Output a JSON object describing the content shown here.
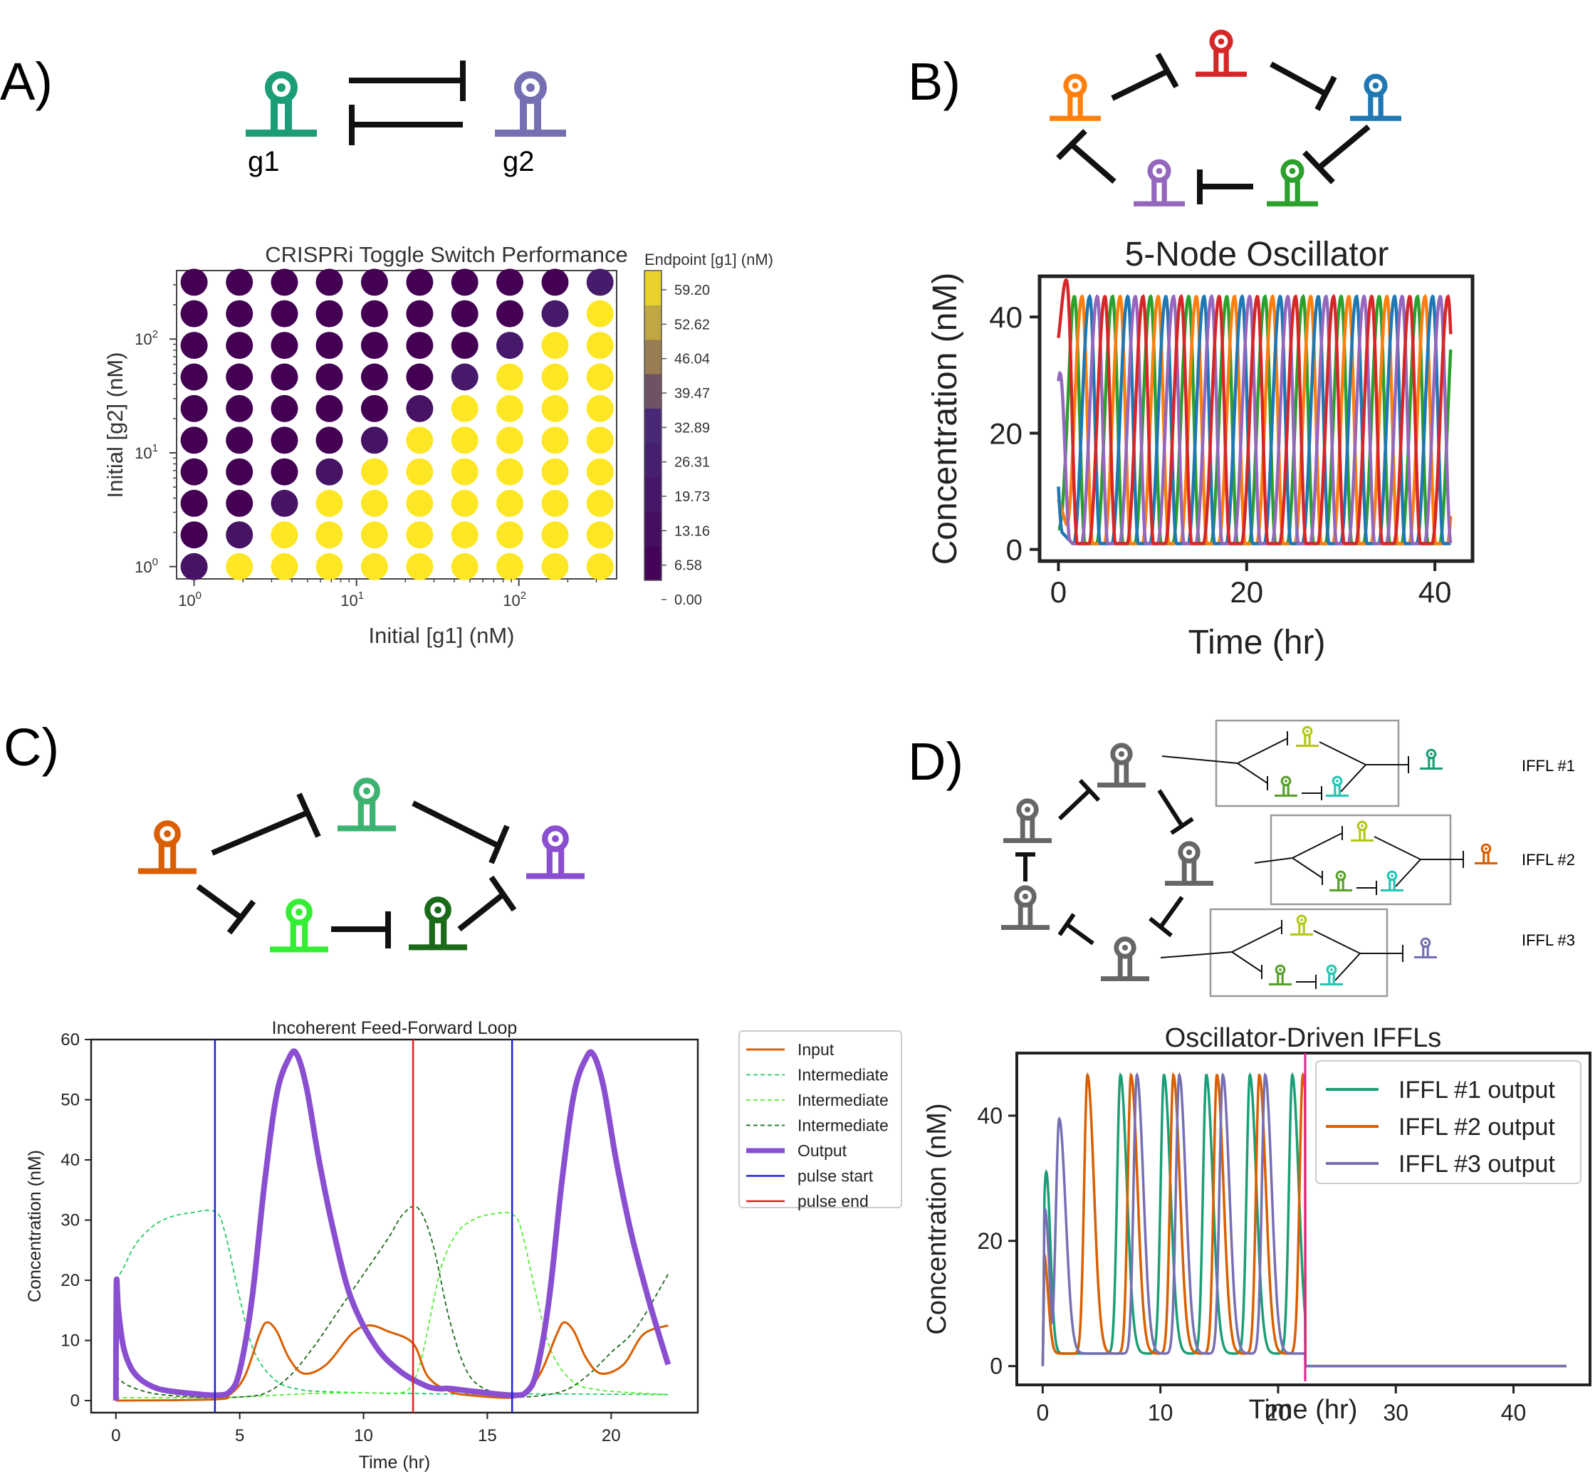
{
  "panels": {
    "a": {
      "letter": "A)",
      "gene_labels": [
        "g1",
        "g2"
      ],
      "colors": {
        "g1": "#1b9e77",
        "g2": "#7570b3"
      }
    },
    "b": {
      "letter": "B)",
      "node_colors": [
        "#ff7f0e",
        "#d62728",
        "#1f77b4",
        "#2ca02c",
        "#9467bd"
      ]
    },
    "c": {
      "letter": "C)",
      "node_colors": {
        "input": "#d95f02",
        "top": "#3cb371",
        "output": "#8a4fd0",
        "bottom_left": "#33ee33",
        "bottom_right": "#1a6a1a"
      }
    },
    "d": {
      "letter": "D)",
      "iffl_labels": [
        "IFFL #1",
        "IFFL #2",
        "IFFL #3"
      ],
      "node_color": "#666666",
      "output_colors": [
        "#1b9e77",
        "#d95f02",
        "#7570b3"
      ]
    }
  },
  "chart_data": [
    {
      "id": "A",
      "type": "scatter",
      "title": "CRISPRi Toggle Switch Performance",
      "xlabel": "Initial [g1] (nM)",
      "ylabel": "Initial [g2] (nM)",
      "x_scale": "log",
      "y_scale": "log",
      "x_ticks": [
        {
          "base": "10",
          "exp": "0",
          "v": 1
        },
        {
          "base": "10",
          "exp": "1",
          "v": 10
        },
        {
          "base": "10",
          "exp": "2",
          "v": 100
        }
      ],
      "y_ticks": [
        {
          "base": "10",
          "exp": "0",
          "v": 1
        },
        {
          "base": "10",
          "exp": "1",
          "v": 10
        },
        {
          "base": "10",
          "exp": "2",
          "v": 100
        }
      ],
      "grid_values": [
        1,
        1.9,
        3.6,
        6.8,
        12.9,
        24.5,
        46.4,
        88,
        167,
        316
      ],
      "colorbar_title": "Endpoint [g1] (nM)",
      "colorbar_ticks": [
        "59.20",
        "52.62",
        "46.04",
        "39.47",
        "32.89",
        "26.31",
        "19.73",
        "13.16",
        "6.58",
        "0.00"
      ],
      "colorbar_range": [
        0,
        59.2
      ],
      "colors": {
        "low": "#440154",
        "high": "#fde725"
      },
      "partial": [
        [
          0,
          0,
          14
        ],
        [
          1,
          1,
          14
        ],
        [
          2,
          2,
          14
        ],
        [
          3,
          3,
          14
        ],
        [
          4,
          4,
          14
        ],
        [
          5,
          5,
          14
        ],
        [
          6,
          6,
          18
        ],
        [
          7,
          7,
          18
        ],
        [
          8,
          8,
          18
        ],
        [
          9,
          9,
          20
        ]
      ],
      "note": "Endpoint [g1] is low (~0) when Initial [g1] index < Initial [g2] index and high (~59.2) when greater; near-diagonal points intermediate."
    },
    {
      "id": "B",
      "type": "line",
      "title": "5-Node Oscillator",
      "xlabel": "Time (hr)",
      "ylabel": "Concentration (nM)",
      "xlim": [
        -2,
        44
      ],
      "ylim": [
        -2,
        47
      ],
      "x_ticks": [
        0,
        20,
        40
      ],
      "y_ticks": [
        0,
        20,
        40
      ],
      "period": 4.05,
      "amplitude": [
        1,
        43.5
      ],
      "series": [
        {
          "color": "#2ca02c",
          "phase": 0.0
        },
        {
          "color": "#ff7f0e",
          "phase": 0.81
        },
        {
          "color": "#1f77b4",
          "phase": 1.62
        },
        {
          "color": "#9467bd",
          "phase": 2.43
        },
        {
          "color": "#d62728",
          "phase": 3.24
        }
      ],
      "t_end": 41.7
    },
    {
      "id": "C",
      "type": "line",
      "title": "Incoherent Feed-Forward Loop",
      "xlabel": "Time (hr)",
      "ylabel": "Concentration (nM)",
      "xlim": [
        -1,
        23.5
      ],
      "ylim": [
        -2,
        60
      ],
      "x_ticks": [
        0,
        5,
        10,
        15,
        20
      ],
      "y_ticks": [
        0,
        10,
        20,
        30,
        40,
        50,
        60
      ],
      "legend": [
        "Input",
        "Intermediate",
        "Intermediate",
        "Intermediate",
        "Output",
        "pulse start",
        "pulse end"
      ],
      "legend_colors": [
        "#d95f02",
        "#22cc66",
        "#55ee33",
        "#1a6a1a",
        "#8a4fd0",
        "#1f1fd6",
        "#e02020"
      ],
      "series": [
        {
          "name": "Input",
          "color": "#d95f02",
          "x": [
            0,
            4,
            4.6,
            5.2,
            5.8,
            6.1,
            6.5,
            7.0,
            7.6,
            8.5,
            9.5,
            10.2,
            11.0,
            12.0,
            12.6,
            13.5,
            14.5,
            16.0,
            16.6,
            17.2,
            17.8,
            18.1,
            18.5,
            19.0,
            19.6,
            20.5,
            21.3,
            22.3
          ],
          "y": [
            0,
            0.2,
            1,
            4,
            11,
            13,
            11.5,
            7,
            4.5,
            6,
            11,
            12.5,
            11.5,
            9.5,
            4,
            1.5,
            0.8,
            0.5,
            1.5,
            5,
            11,
            13,
            11.5,
            7,
            4.5,
            6,
            11,
            12.5
          ]
        },
        {
          "name": "Intermediate",
          "color": "#22cc66",
          "dash": true,
          "x": [
            0,
            0.3,
            0.8,
            1.5,
            2.2,
            3.0,
            4.0,
            4.4,
            5.0,
            5.6,
            6.5,
            7.5,
            8.5,
            10.0,
            12.0,
            13.5,
            16.0,
            18.0,
            22.3
          ],
          "y": [
            20,
            22,
            26,
            29,
            30.5,
            31.2,
            31.4,
            28,
            17,
            8,
            3.2,
            1.8,
            1.5,
            1.3,
            1.2,
            1.1,
            1.1,
            1.1,
            1.0
          ]
        },
        {
          "name": "Intermediate",
          "color": "#55ee33",
          "dash": true,
          "x": [
            0,
            4,
            6,
            8,
            10,
            11.5,
            12.0,
            12.4,
            12.8,
            13.2,
            13.8,
            14.5,
            15.2,
            16.0,
            16.4,
            17.0,
            17.6,
            18.5,
            19.5,
            20.5,
            22.3
          ],
          "y": [
            0.5,
            0.5,
            0.8,
            1.2,
            1.3,
            1.3,
            3,
            8,
            16,
            23,
            28,
            30.2,
            31,
            31,
            28,
            17,
            8,
            3,
            1.8,
            1.4,
            1.0
          ]
        },
        {
          "name": "Intermediate",
          "color": "#1a6a1a",
          "dash": true,
          "x": [
            0,
            0.5,
            1.5,
            3.0,
            4.0,
            5.0,
            6.0,
            7.0,
            8.0,
            9.0,
            10.0,
            11.0,
            11.6,
            12.2,
            12.8,
            13.5,
            14.3,
            15.5,
            16.5,
            18.0,
            19.0,
            20.0,
            21.0,
            22.3
          ],
          "y": [
            4,
            2.5,
            1.2,
            0.6,
            0.5,
            0.6,
            1.2,
            4,
            9,
            15,
            21,
            27,
            31,
            32,
            26,
            13,
            4,
            1,
            0.6,
            1.5,
            4,
            8,
            12,
            21
          ]
        },
        {
          "name": "Output",
          "color": "#8a4fd0",
          "bold": true,
          "x": [
            0,
            0.02,
            0.1,
            0.3,
            0.6,
            1.0,
            1.5,
            2.0,
            3.0,
            4.0,
            4.6,
            5.0,
            5.5,
            6.0,
            6.5,
            7.0,
            7.3,
            7.7,
            8.2,
            8.8,
            9.5,
            10.5,
            11.5,
            12.5,
            13.0,
            13.5,
            14.5,
            16.0,
            16.6,
            17.0,
            17.5,
            18.0,
            18.5,
            19.0,
            19.3,
            19.7,
            20.2,
            20.8,
            21.5,
            22.3
          ],
          "y": [
            0,
            19.5,
            15,
            9,
            5.5,
            3.5,
            2.3,
            1.7,
            1.2,
            0.9,
            1.5,
            5,
            17,
            36,
            51,
            57,
            57.6,
            52,
            40,
            28,
            17,
            9,
            4.8,
            2.5,
            2.0,
            2.0,
            1.5,
            0.9,
            1.5,
            5,
            17,
            36,
            51,
            57,
            57.4,
            52,
            40,
            28,
            17,
            6
          ]
        }
      ],
      "vlines": [
        {
          "x": 4,
          "color": "#1f1fd6"
        },
        {
          "x": 12,
          "color": "#e02020"
        },
        {
          "x": 16,
          "color": "#1f1fd6"
        }
      ]
    },
    {
      "id": "D",
      "type": "line",
      "title": "Oscillator-Driven IFFLs",
      "xlabel": "Time (hr)",
      "ylabel": "Concentration (nM)",
      "xlim": [
        -2.2,
        46.5
      ],
      "ylim": [
        -3,
        50
      ],
      "x_ticks": [
        0,
        10,
        20,
        30,
        40
      ],
      "y_ticks": [
        0,
        20,
        40
      ],
      "legend": [
        "IFFL #1 output",
        "IFFL #2 output",
        "IFFL #3 output"
      ],
      "series": [
        {
          "name": "IFFL #1 output",
          "color": "#1b9e77",
          "peaks": [
            0.3,
            6.6,
            10.3,
            13.9,
            17.6,
            21.2
          ],
          "peak_h": [
            31,
            46.5,
            46.5,
            46.5,
            46.5,
            46.5
          ]
        },
        {
          "name": "IFFL #2 output",
          "color": "#d95f02",
          "peaks": [
            0.1,
            3.8,
            7.5,
            11.1,
            14.8,
            18.4,
            22.1
          ],
          "peak_h": [
            18,
            46.5,
            46.5,
            46.5,
            46.5,
            46.5,
            46.5
          ]
        },
        {
          "name": "IFFL #3 output",
          "color": "#7570b3",
          "peaks": [
            0.2,
            1.4,
            8.0,
            11.6,
            15.3,
            18.9
          ],
          "peak_h": [
            25,
            39.5,
            46.5,
            46.5,
            46.5,
            46.5
          ]
        }
      ],
      "cutoff_x": 22.3,
      "cutoff_color": "#e0228a",
      "t_end": 44.5
    }
  ]
}
